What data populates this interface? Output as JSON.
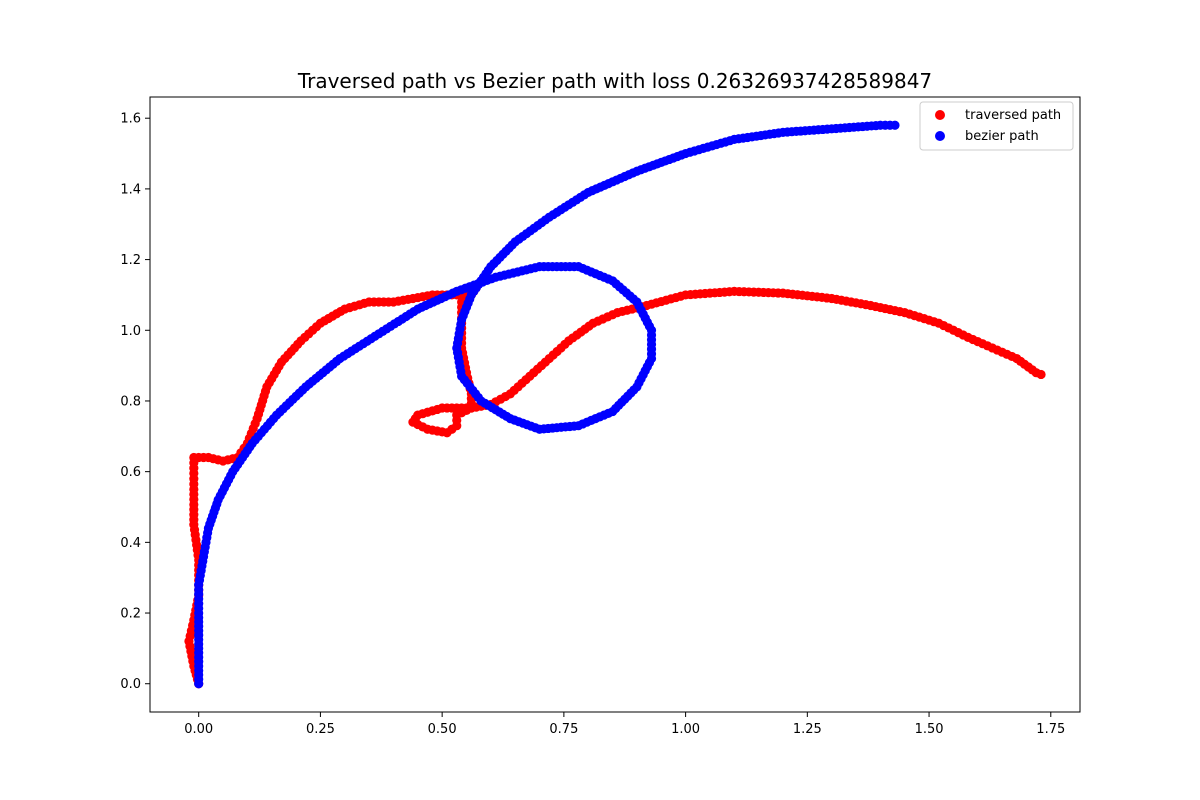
{
  "chart_data": {
    "type": "scatter",
    "title": "Traversed path vs Bezier path with loss 0.26326937428589847",
    "xlabel": "",
    "ylabel": "",
    "xlim": [
      -0.1,
      1.81
    ],
    "ylim": [
      -0.08,
      1.66
    ],
    "xticks": [
      0.0,
      0.25,
      0.5,
      0.75,
      1.0,
      1.25,
      1.5,
      1.75
    ],
    "xtick_labels": [
      "0.00",
      "0.25",
      "0.50",
      "0.75",
      "1.00",
      "1.25",
      "1.50",
      "1.75"
    ],
    "yticks": [
      0.0,
      0.2,
      0.4,
      0.6,
      0.8,
      1.0,
      1.2,
      1.4,
      1.6
    ],
    "ytick_labels": [
      "0.0",
      "0.2",
      "0.4",
      "0.6",
      "0.8",
      "1.0",
      "1.2",
      "1.4",
      "1.6"
    ],
    "grid": false,
    "legend_position": "top-right",
    "series": [
      {
        "name": "traversed path",
        "color": "#ff0000",
        "polyline": [
          [
            0.0,
            0.0
          ],
          [
            -0.01,
            0.05
          ],
          [
            -0.02,
            0.12
          ],
          [
            -0.01,
            0.18
          ],
          [
            0.0,
            0.25
          ],
          [
            0.0,
            0.35
          ],
          [
            -0.01,
            0.45
          ],
          [
            -0.01,
            0.55
          ],
          [
            -0.01,
            0.64
          ],
          [
            0.02,
            0.64
          ],
          [
            0.05,
            0.63
          ],
          [
            0.08,
            0.64
          ],
          [
            0.1,
            0.68
          ],
          [
            0.12,
            0.75
          ],
          [
            0.14,
            0.84
          ],
          [
            0.17,
            0.91
          ],
          [
            0.21,
            0.97
          ],
          [
            0.25,
            1.02
          ],
          [
            0.3,
            1.06
          ],
          [
            0.35,
            1.08
          ],
          [
            0.4,
            1.08
          ],
          [
            0.44,
            1.09
          ],
          [
            0.48,
            1.1
          ],
          [
            0.52,
            1.1
          ],
          [
            0.56,
            1.1
          ],
          [
            0.57,
            1.12
          ],
          [
            0.54,
            1.08
          ],
          [
            0.54,
            1.02
          ],
          [
            0.54,
            0.95
          ],
          [
            0.55,
            0.88
          ],
          [
            0.56,
            0.82
          ],
          [
            0.56,
            0.78
          ],
          [
            0.53,
            0.76
          ],
          [
            0.53,
            0.73
          ],
          [
            0.51,
            0.71
          ],
          [
            0.47,
            0.72
          ],
          [
            0.44,
            0.74
          ],
          [
            0.45,
            0.76
          ],
          [
            0.5,
            0.78
          ],
          [
            0.56,
            0.78
          ],
          [
            0.6,
            0.79
          ],
          [
            0.64,
            0.82
          ],
          [
            0.68,
            0.87
          ],
          [
            0.72,
            0.92
          ],
          [
            0.76,
            0.97
          ],
          [
            0.81,
            1.02
          ],
          [
            0.86,
            1.05
          ],
          [
            0.92,
            1.07
          ],
          [
            1.0,
            1.1
          ],
          [
            1.1,
            1.11
          ],
          [
            1.2,
            1.105
          ],
          [
            1.3,
            1.09
          ],
          [
            1.38,
            1.07
          ],
          [
            1.45,
            1.05
          ],
          [
            1.52,
            1.02
          ],
          [
            1.58,
            0.98
          ],
          [
            1.63,
            0.95
          ],
          [
            1.68,
            0.92
          ],
          [
            1.72,
            0.88
          ],
          [
            1.73,
            0.875
          ]
        ]
      },
      {
        "name": "bezier path",
        "color": "#0000ff",
        "polyline": [
          [
            0.0,
            0.0
          ],
          [
            0.0,
            0.1
          ],
          [
            0.0,
            0.2
          ],
          [
            0.0,
            0.28
          ],
          [
            0.01,
            0.36
          ],
          [
            0.02,
            0.44
          ],
          [
            0.04,
            0.52
          ],
          [
            0.07,
            0.6
          ],
          [
            0.11,
            0.68
          ],
          [
            0.16,
            0.76
          ],
          [
            0.22,
            0.84
          ],
          [
            0.29,
            0.92
          ],
          [
            0.37,
            0.99
          ],
          [
            0.45,
            1.06
          ],
          [
            0.53,
            1.11
          ],
          [
            0.61,
            1.15
          ],
          [
            0.7,
            1.18
          ],
          [
            0.78,
            1.18
          ],
          [
            0.85,
            1.14
          ],
          [
            0.9,
            1.08
          ],
          [
            0.93,
            1.0
          ],
          [
            0.93,
            0.92
          ],
          [
            0.9,
            0.84
          ],
          [
            0.85,
            0.77
          ],
          [
            0.78,
            0.73
          ],
          [
            0.7,
            0.72
          ],
          [
            0.64,
            0.75
          ],
          [
            0.58,
            0.8
          ],
          [
            0.54,
            0.87
          ],
          [
            0.53,
            0.95
          ],
          [
            0.54,
            1.03
          ],
          [
            0.56,
            1.1
          ],
          [
            0.6,
            1.18
          ],
          [
            0.65,
            1.25
          ],
          [
            0.72,
            1.32
          ],
          [
            0.8,
            1.39
          ],
          [
            0.9,
            1.45
          ],
          [
            1.0,
            1.5
          ],
          [
            1.1,
            1.54
          ],
          [
            1.2,
            1.56
          ],
          [
            1.3,
            1.57
          ],
          [
            1.4,
            1.58
          ],
          [
            1.43,
            1.58
          ]
        ]
      }
    ]
  }
}
